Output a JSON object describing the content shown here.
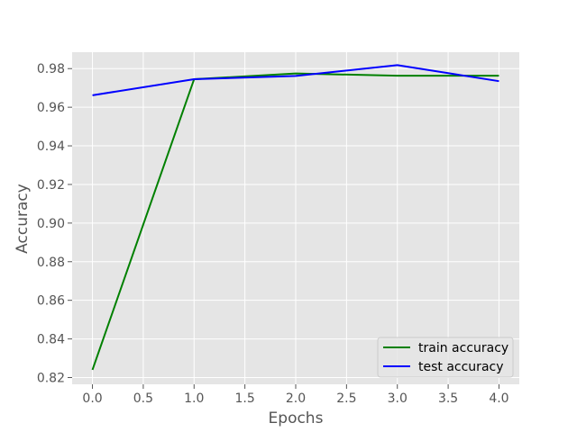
{
  "chart_data": {
    "type": "line",
    "title": "",
    "xlabel": "Epochs",
    "ylabel": "Accuracy",
    "x": [
      0,
      1,
      2,
      3,
      4
    ],
    "series": [
      {
        "name": "train accuracy",
        "color": "#008000",
        "values": [
          0.824,
          0.9745,
          0.9775,
          0.9763,
          0.9763
        ]
      },
      {
        "name": "test accuracy",
        "color": "#0000ff",
        "values": [
          0.9662,
          0.9745,
          0.9762,
          0.9818,
          0.9735
        ]
      }
    ],
    "xlim": [
      -0.2,
      4.2
    ],
    "ylim": [
      0.8165,
      0.9885
    ],
    "xticks": [
      0.0,
      0.5,
      1.0,
      1.5,
      2.0,
      2.5,
      3.0,
      3.5,
      4.0
    ],
    "xtick_labels": [
      "0.0",
      "0.5",
      "1.0",
      "1.5",
      "2.0",
      "2.5",
      "3.0",
      "3.5",
      "4.0"
    ],
    "yticks": [
      0.82,
      0.84,
      0.86,
      0.88,
      0.9,
      0.92,
      0.94,
      0.96,
      0.98
    ],
    "ytick_labels": [
      "0.82",
      "0.84",
      "0.86",
      "0.88",
      "0.90",
      "0.92",
      "0.94",
      "0.96",
      "0.98"
    ],
    "grid": true,
    "legend_position": "bottom-right",
    "plot_background": "#e5e5e5",
    "grid_color": "#ffffff"
  }
}
